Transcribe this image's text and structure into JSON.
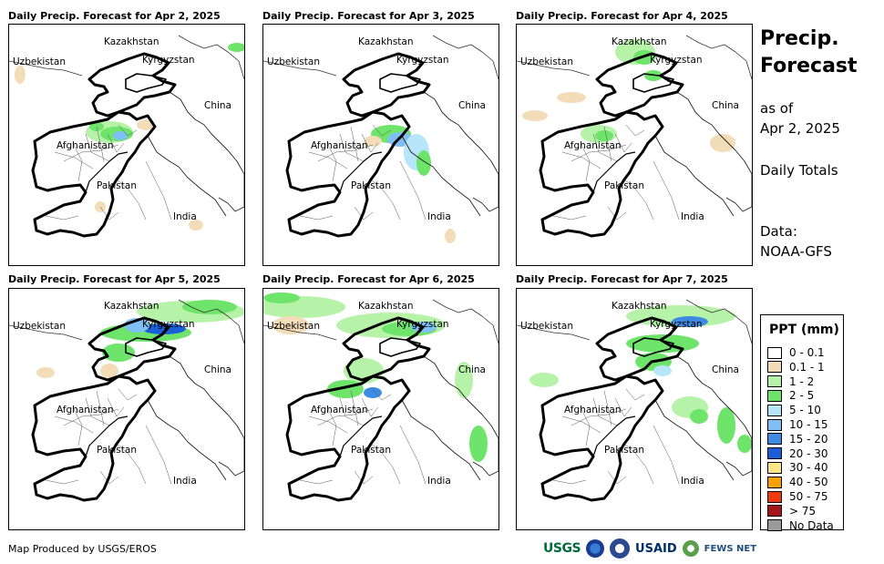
{
  "panels": [
    {
      "title": "Daily Precip. Forecast for Apr 2, 2025"
    },
    {
      "title": "Daily Precip. Forecast for Apr 3, 2025"
    },
    {
      "title": "Daily Precip. Forecast for Apr 4, 2025"
    },
    {
      "title": "Daily Precip. Forecast for Apr 5, 2025"
    },
    {
      "title": "Daily Precip. Forecast for Apr 6, 2025"
    },
    {
      "title": "Daily Precip. Forecast for Apr 7, 2025"
    }
  ],
  "map_labels": {
    "kazakhstan": "Kazakhstan",
    "uzbekistan": "Uzbekistan",
    "kyrgyzstan": "Kyrgyzstan",
    "china": "China",
    "afghanistan": "Afghanistan",
    "pakistan": "Pakistan",
    "india": "India"
  },
  "side": {
    "title_line1": "Precip.",
    "title_line2": "Forecast",
    "asof": "as of",
    "date": "Apr 2, 2025",
    "totals": "Daily Totals",
    "data_label": "Data:",
    "data_source": "NOAA-GFS"
  },
  "legend": {
    "title": "PPT (mm)",
    "items": [
      {
        "label": "0 - 0.1",
        "color": "#ffffff"
      },
      {
        "label": "0.1 - 1",
        "color": "#f3dcb8"
      },
      {
        "label": "1 - 2",
        "color": "#b6f3a8"
      },
      {
        "label": "2 - 5",
        "color": "#6ee46a"
      },
      {
        "label": "5 - 10",
        "color": "#b7e6fb"
      },
      {
        "label": "10 - 15",
        "color": "#7fbff3"
      },
      {
        "label": "15 - 20",
        "color": "#3e8be3"
      },
      {
        "label": "20 - 30",
        "color": "#1a5ed8"
      },
      {
        "label": "30 - 40",
        "color": "#fbe68a"
      },
      {
        "label": "40 - 50",
        "color": "#f5a200"
      },
      {
        "label": "50 - 75",
        "color": "#f03a10"
      },
      {
        "label": "> 75",
        "color": "#a4161c"
      },
      {
        "label": "No Data",
        "color": "#9a9a9a"
      }
    ]
  },
  "footer": {
    "credit": "Map Produced by USGS/EROS"
  },
  "logos": {
    "usgs": "USGS",
    "usaid": "USAID",
    "fews": "FEWS NET"
  }
}
